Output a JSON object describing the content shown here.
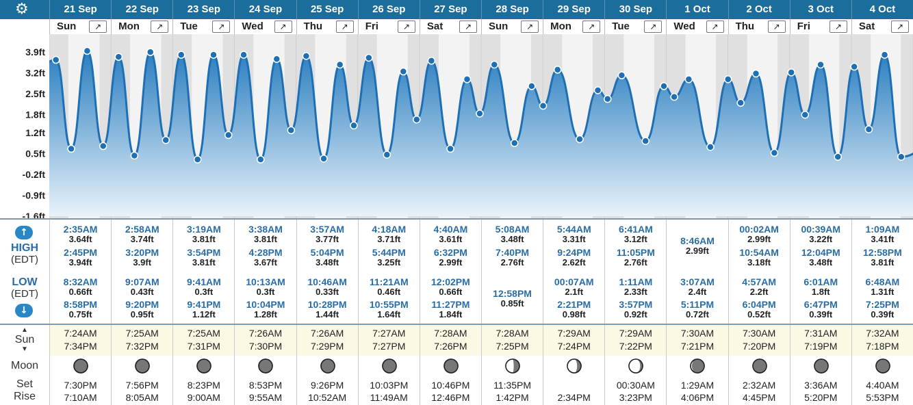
{
  "header": {
    "settings_icon": "gear-icon"
  },
  "days": [
    {
      "date": "21 Sep",
      "weekday": "Sun"
    },
    {
      "date": "22 Sep",
      "weekday": "Mon"
    },
    {
      "date": "23 Sep",
      "weekday": "Tue"
    },
    {
      "date": "24 Sep",
      "weekday": "Wed"
    },
    {
      "date": "25 Sep",
      "weekday": "Thu"
    },
    {
      "date": "26 Sep",
      "weekday": "Fri"
    },
    {
      "date": "27 Sep",
      "weekday": "Sat"
    },
    {
      "date": "28 Sep",
      "weekday": "Sun"
    },
    {
      "date": "29 Sep",
      "weekday": "Mon"
    },
    {
      "date": "30 Sep",
      "weekday": "Tue"
    },
    {
      "date": "1 Oct",
      "weekday": "Wed"
    },
    {
      "date": "2 Oct",
      "weekday": "Thu"
    },
    {
      "date": "3 Oct",
      "weekday": "Fri"
    },
    {
      "date": "4 Oct",
      "weekday": "Sat"
    }
  ],
  "chart_data": {
    "type": "area",
    "title": "",
    "xlabel": "",
    "ylabel": "",
    "unit": "ft",
    "y_ticks": [
      "3.9ft",
      "3.2ft",
      "2.5ft",
      "1.8ft",
      "1.2ft",
      "0.5ft",
      "-0.2ft",
      "-0.9ft",
      "-1.6ft"
    ],
    "y_tick_values": [
      3.9,
      3.2,
      2.5,
      1.8,
      1.2,
      0.5,
      -0.2,
      -0.9,
      -1.6
    ],
    "ylim": [
      -1.6,
      4.5
    ],
    "colors": {
      "line": "#1f6fb5",
      "fill_top": "#2a7ec0",
      "fill_bottom": "#e8f2fa",
      "point": "#1f6fb5",
      "day_band": "#f3f3f3",
      "night_band": "#e0e0e0"
    },
    "tides": [
      {
        "day": 0,
        "time": "2:35AM",
        "height": 3.64,
        "type": "high"
      },
      {
        "day": 0,
        "time": "8:32AM",
        "height": 0.66,
        "type": "low"
      },
      {
        "day": 0,
        "time": "2:45PM",
        "height": 3.94,
        "type": "high"
      },
      {
        "day": 0,
        "time": "8:58PM",
        "height": 0.75,
        "type": "low"
      },
      {
        "day": 1,
        "time": "2:58AM",
        "height": 3.74,
        "type": "high"
      },
      {
        "day": 1,
        "time": "9:07AM",
        "height": 0.43,
        "type": "low"
      },
      {
        "day": 1,
        "time": "3:20PM",
        "height": 3.9,
        "type": "high"
      },
      {
        "day": 1,
        "time": "9:20PM",
        "height": 0.95,
        "type": "low"
      },
      {
        "day": 2,
        "time": "3:19AM",
        "height": 3.81,
        "type": "high"
      },
      {
        "day": 2,
        "time": "9:41AM",
        "height": 0.3,
        "type": "low"
      },
      {
        "day": 2,
        "time": "3:54PM",
        "height": 3.81,
        "type": "high"
      },
      {
        "day": 2,
        "time": "9:41PM",
        "height": 1.12,
        "type": "low"
      },
      {
        "day": 3,
        "time": "3:38AM",
        "height": 3.81,
        "type": "high"
      },
      {
        "day": 3,
        "time": "10:13AM",
        "height": 0.3,
        "type": "low"
      },
      {
        "day": 3,
        "time": "4:28PM",
        "height": 3.67,
        "type": "high"
      },
      {
        "day": 3,
        "time": "10:04PM",
        "height": 1.28,
        "type": "low"
      },
      {
        "day": 4,
        "time": "3:57AM",
        "height": 3.77,
        "type": "high"
      },
      {
        "day": 4,
        "time": "10:46AM",
        "height": 0.33,
        "type": "low"
      },
      {
        "day": 4,
        "time": "5:04PM",
        "height": 3.48,
        "type": "high"
      },
      {
        "day": 4,
        "time": "10:28PM",
        "height": 1.44,
        "type": "low"
      },
      {
        "day": 5,
        "time": "4:18AM",
        "height": 3.71,
        "type": "high"
      },
      {
        "day": 5,
        "time": "11:21AM",
        "height": 0.46,
        "type": "low"
      },
      {
        "day": 5,
        "time": "5:44PM",
        "height": 3.25,
        "type": "high"
      },
      {
        "day": 5,
        "time": "10:55PM",
        "height": 1.64,
        "type": "low"
      },
      {
        "day": 6,
        "time": "4:40AM",
        "height": 3.61,
        "type": "high"
      },
      {
        "day": 6,
        "time": "12:02PM",
        "height": 0.66,
        "type": "low"
      },
      {
        "day": 6,
        "time": "6:32PM",
        "height": 2.99,
        "type": "high"
      },
      {
        "day": 6,
        "time": "11:27PM",
        "height": 1.84,
        "type": "low"
      },
      {
        "day": 7,
        "time": "5:08AM",
        "height": 3.48,
        "type": "high"
      },
      {
        "day": 7,
        "time": "12:58PM",
        "height": 0.85,
        "type": "low"
      },
      {
        "day": 7,
        "time": "7:40PM",
        "height": 2.76,
        "type": "high"
      },
      {
        "day": 8,
        "time": "00:07AM",
        "height": 2.1,
        "type": "low"
      },
      {
        "day": 8,
        "time": "5:44AM",
        "height": 3.31,
        "type": "high"
      },
      {
        "day": 8,
        "time": "2:21PM",
        "height": 0.98,
        "type": "low"
      },
      {
        "day": 8,
        "time": "9:24PM",
        "height": 2.62,
        "type": "high"
      },
      {
        "day": 9,
        "time": "1:11AM",
        "height": 2.33,
        "type": "low"
      },
      {
        "day": 9,
        "time": "6:41AM",
        "height": 3.12,
        "type": "high"
      },
      {
        "day": 9,
        "time": "3:57PM",
        "height": 0.92,
        "type": "low"
      },
      {
        "day": 9,
        "time": "11:05PM",
        "height": 2.76,
        "type": "high"
      },
      {
        "day": 10,
        "time": "3:07AM",
        "height": 2.4,
        "type": "low"
      },
      {
        "day": 10,
        "time": "8:46AM",
        "height": 2.99,
        "type": "high"
      },
      {
        "day": 10,
        "time": "5:11PM",
        "height": 0.72,
        "type": "low"
      },
      {
        "day": 11,
        "time": "00:02AM",
        "height": 2.99,
        "type": "high"
      },
      {
        "day": 11,
        "time": "4:57AM",
        "height": 2.2,
        "type": "low"
      },
      {
        "day": 11,
        "time": "10:54AM",
        "height": 3.18,
        "type": "high"
      },
      {
        "day": 11,
        "time": "6:04PM",
        "height": 0.52,
        "type": "low"
      },
      {
        "day": 12,
        "time": "00:39AM",
        "height": 3.22,
        "type": "high"
      },
      {
        "day": 12,
        "time": "6:01AM",
        "height": 1.8,
        "type": "low"
      },
      {
        "day": 12,
        "time": "12:04PM",
        "height": 3.48,
        "type": "high"
      },
      {
        "day": 12,
        "time": "6:47PM",
        "height": 0.39,
        "type": "low"
      },
      {
        "day": 13,
        "time": "1:09AM",
        "height": 3.41,
        "type": "high"
      },
      {
        "day": 13,
        "time": "6:48AM",
        "height": 1.31,
        "type": "low"
      },
      {
        "day": 13,
        "time": "12:58PM",
        "height": 3.81,
        "type": "high"
      },
      {
        "day": 13,
        "time": "7:25PM",
        "height": 0.39,
        "type": "low"
      }
    ]
  },
  "table": {
    "high_label": "HIGH",
    "low_label": "LOW",
    "tz_label": "(EDT)",
    "sun_label": "Sun",
    "moon_label": "Moon",
    "set_label": "Set",
    "rise_label": "Rise",
    "highs": [
      [
        {
          "t": "2:35AM",
          "h": "3.64ft"
        },
        {
          "t": "2:45PM",
          "h": "3.94ft"
        }
      ],
      [
        {
          "t": "2:58AM",
          "h": "3.74ft"
        },
        {
          "t": "3:20PM",
          "h": "3.9ft"
        }
      ],
      [
        {
          "t": "3:19AM",
          "h": "3.81ft"
        },
        {
          "t": "3:54PM",
          "h": "3.81ft"
        }
      ],
      [
        {
          "t": "3:38AM",
          "h": "3.81ft"
        },
        {
          "t": "4:28PM",
          "h": "3.67ft"
        }
      ],
      [
        {
          "t": "3:57AM",
          "h": "3.77ft"
        },
        {
          "t": "5:04PM",
          "h": "3.48ft"
        }
      ],
      [
        {
          "t": "4:18AM",
          "h": "3.71ft"
        },
        {
          "t": "5:44PM",
          "h": "3.25ft"
        }
      ],
      [
        {
          "t": "4:40AM",
          "h": "3.61ft"
        },
        {
          "t": "6:32PM",
          "h": "2.99ft"
        }
      ],
      [
        {
          "t": "5:08AM",
          "h": "3.48ft"
        },
        {
          "t": "7:40PM",
          "h": "2.76ft"
        }
      ],
      [
        {
          "t": "5:44AM",
          "h": "3.31ft"
        },
        {
          "t": "9:24PM",
          "h": "2.62ft"
        }
      ],
      [
        {
          "t": "6:41AM",
          "h": "3.12ft"
        },
        {
          "t": "11:05PM",
          "h": "2.76ft"
        }
      ],
      [
        {
          "t": "8:46AM",
          "h": "2.99ft"
        }
      ],
      [
        {
          "t": "00:02AM",
          "h": "2.99ft"
        },
        {
          "t": "10:54AM",
          "h": "3.18ft"
        }
      ],
      [
        {
          "t": "00:39AM",
          "h": "3.22ft"
        },
        {
          "t": "12:04PM",
          "h": "3.48ft"
        }
      ],
      [
        {
          "t": "1:09AM",
          "h": "3.41ft"
        },
        {
          "t": "12:58PM",
          "h": "3.81ft"
        }
      ]
    ],
    "lows": [
      [
        {
          "t": "8:32AM",
          "h": "0.66ft"
        },
        {
          "t": "8:58PM",
          "h": "0.75ft"
        }
      ],
      [
        {
          "t": "9:07AM",
          "h": "0.43ft"
        },
        {
          "t": "9:20PM",
          "h": "0.95ft"
        }
      ],
      [
        {
          "t": "9:41AM",
          "h": "0.3ft"
        },
        {
          "t": "9:41PM",
          "h": "1.12ft"
        }
      ],
      [
        {
          "t": "10:13AM",
          "h": "0.3ft"
        },
        {
          "t": "10:04PM",
          "h": "1.28ft"
        }
      ],
      [
        {
          "t": "10:46AM",
          "h": "0.33ft"
        },
        {
          "t": "10:28PM",
          "h": "1.44ft"
        }
      ],
      [
        {
          "t": "11:21AM",
          "h": "0.46ft"
        },
        {
          "t": "10:55PM",
          "h": "1.64ft"
        }
      ],
      [
        {
          "t": "12:02PM",
          "h": "0.66ft"
        },
        {
          "t": "11:27PM",
          "h": "1.84ft"
        }
      ],
      [
        {
          "t": "12:58PM",
          "h": "0.85ft"
        }
      ],
      [
        {
          "t": "00:07AM",
          "h": "2.1ft"
        },
        {
          "t": "2:21PM",
          "h": "0.98ft"
        }
      ],
      [
        {
          "t": "1:11AM",
          "h": "2.33ft"
        },
        {
          "t": "3:57PM",
          "h": "0.92ft"
        }
      ],
      [
        {
          "t": "3:07AM",
          "h": "2.4ft"
        },
        {
          "t": "5:11PM",
          "h": "0.72ft"
        }
      ],
      [
        {
          "t": "4:57AM",
          "h": "2.2ft"
        },
        {
          "t": "6:04PM",
          "h": "0.52ft"
        }
      ],
      [
        {
          "t": "6:01AM",
          "h": "1.8ft"
        },
        {
          "t": "6:47PM",
          "h": "0.39ft"
        }
      ],
      [
        {
          "t": "6:48AM",
          "h": "1.31ft"
        },
        {
          "t": "7:25PM",
          "h": "0.39ft"
        }
      ]
    ],
    "sun": [
      {
        "rise": "7:24AM",
        "set": "7:34PM"
      },
      {
        "rise": "7:25AM",
        "set": "7:32PM"
      },
      {
        "rise": "7:25AM",
        "set": "7:31PM"
      },
      {
        "rise": "7:26AM",
        "set": "7:30PM"
      },
      {
        "rise": "7:26AM",
        "set": "7:29PM"
      },
      {
        "rise": "7:27AM",
        "set": "7:27PM"
      },
      {
        "rise": "7:28AM",
        "set": "7:26PM"
      },
      {
        "rise": "7:28AM",
        "set": "7:25PM"
      },
      {
        "rise": "7:29AM",
        "set": "7:24PM"
      },
      {
        "rise": "7:29AM",
        "set": "7:22PM"
      },
      {
        "rise": "7:30AM",
        "set": "7:21PM"
      },
      {
        "rise": "7:30AM",
        "set": "7:20PM"
      },
      {
        "rise": "7:31AM",
        "set": "7:19PM"
      },
      {
        "rise": "7:32AM",
        "set": "7:18PM"
      }
    ],
    "moon": [
      {
        "set": "7:30PM",
        "rise": "7:10AM",
        "phase": 0.02
      },
      {
        "set": "7:56PM",
        "rise": "8:05AM",
        "phase": 0.07
      },
      {
        "set": "8:23PM",
        "rise": "9:00AM",
        "phase": 0.13
      },
      {
        "set": "8:53PM",
        "rise": "9:55AM",
        "phase": 0.2
      },
      {
        "set": "9:26PM",
        "rise": "10:52AM",
        "phase": 0.28
      },
      {
        "set": "10:03PM",
        "rise": "11:49AM",
        "phase": 0.37
      },
      {
        "set": "10:46PM",
        "rise": "12:46PM",
        "phase": 0.46
      },
      {
        "set": "11:35PM",
        "rise": "1:42PM",
        "phase": 0.55
      },
      {
        "set": "",
        "rise": "2:34PM",
        "phase": 0.64
      },
      {
        "set": "00:30AM",
        "rise": "3:23PM",
        "phase": 0.72
      },
      {
        "set": "1:29AM",
        "rise": "4:06PM",
        "phase": 0.8
      },
      {
        "set": "2:32AM",
        "rise": "4:45PM",
        "phase": 0.87
      },
      {
        "set": "3:36AM",
        "rise": "5:20PM",
        "phase": 0.93
      },
      {
        "set": "4:40AM",
        "rise": "5:53PM",
        "phase": 0.98
      }
    ]
  }
}
